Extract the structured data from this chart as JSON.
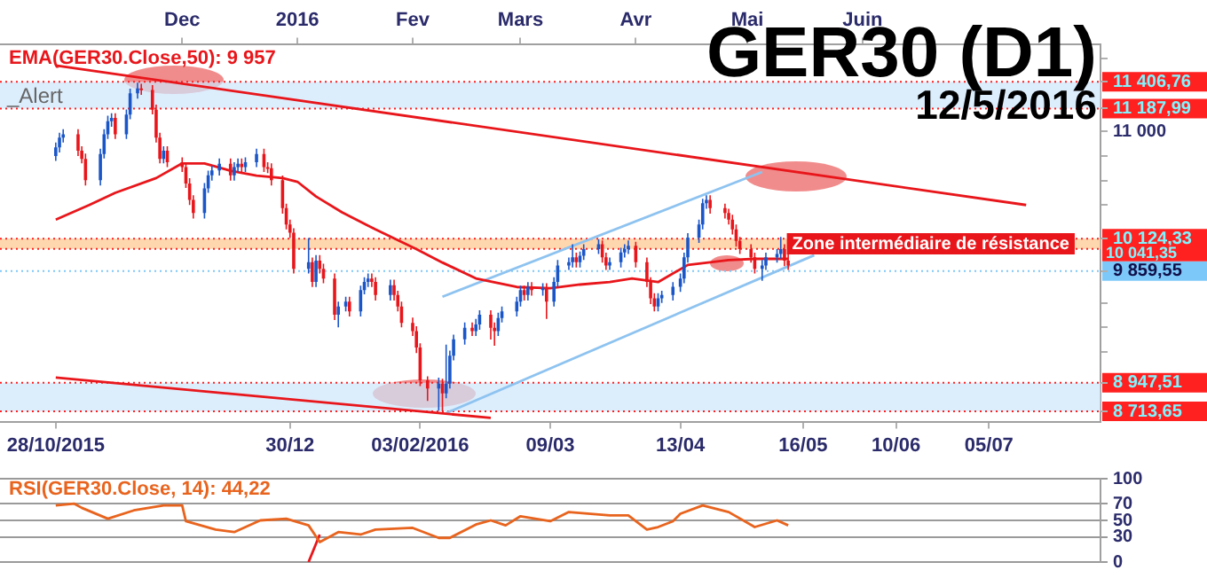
{
  "chart_data": [
    {
      "type": "candlestick",
      "title": "GER30 (D1)",
      "subtitle": "12/5/2016",
      "xlim": [
        "2015-10-13",
        "2016-08-04"
      ],
      "xticks": [
        {
          "value": "2015-10-28",
          "label": "28/10/2015"
        },
        {
          "value": "2015-12-30",
          "label": "30/12"
        },
        {
          "value": "2016-02-03",
          "label": "03/02/2016"
        },
        {
          "value": "2016-03-09",
          "label": "09/03"
        },
        {
          "value": "2016-04-13",
          "label": "13/04"
        },
        {
          "value": "2016-05-16",
          "label": "16/05"
        },
        {
          "value": "2016-06-10",
          "label": "10/06"
        },
        {
          "value": "2016-07-05",
          "label": "05/07"
        }
      ],
      "x2lim": [
        "2015-10-13",
        "2016-08-04"
      ],
      "x2ticks": [
        {
          "value": "2015-12-01",
          "label": "Dec"
        },
        {
          "value": "2016-01-01",
          "label": "2016"
        },
        {
          "value": "2016-02-01",
          "label": "Fev"
        },
        {
          "value": "2016-03-01",
          "label": "Mars"
        },
        {
          "value": "2016-04-01",
          "label": "Avr"
        },
        {
          "value": "2016-05-01",
          "label": "Mai"
        },
        {
          "value": "2016-06-01",
          "label": "Juin"
        }
      ],
      "ylim": [
        8630,
        11710
      ],
      "yticks": [
        {
          "value": 8713.65,
          "label": "8 713,65"
        },
        {
          "value": 8947.51,
          "label": "8 947,51"
        },
        {
          "value": 9200,
          "label": null
        },
        {
          "value": 9400,
          "label": null
        },
        {
          "value": 9600,
          "label": null
        },
        {
          "value": 9859.55,
          "label": "9 859,55"
        },
        {
          "value": 10124.33,
          "label": "10 124,33"
        },
        {
          "value": 10400,
          "label": null
        },
        {
          "value": 10600,
          "label": null
        },
        {
          "value": 10800,
          "label": null
        },
        {
          "value": 11000,
          "label": "11 000"
        },
        {
          "value": 11187.99,
          "label": "11 187,99"
        },
        {
          "value": 11406.76,
          "label": "11 406,76"
        },
        {
          "value": 11600,
          "label": null
        }
      ],
      "x": [
        "2015-10-28",
        "2015-10-29",
        "2015-10-30",
        "2015-11-03",
        "2015-11-04",
        "2015-11-05",
        "2015-11-09",
        "2015-11-10",
        "2015-11-11",
        "2015-11-12",
        "2015-11-13",
        "2015-11-16",
        "2015-11-17",
        "2015-11-19",
        "2015-11-20",
        "2015-11-23",
        "2015-11-24",
        "2015-11-25",
        "2015-11-26",
        "2015-11-27",
        "2015-12-01",
        "2015-12-02",
        "2015-12-03",
        "2015-12-04",
        "2015-12-07",
        "2015-12-08",
        "2015-12-09",
        "2015-12-11",
        "2015-12-14",
        "2015-12-15",
        "2015-12-16",
        "2015-12-17",
        "2015-12-18",
        "2015-12-21",
        "2015-12-23",
        "2015-12-24",
        "2015-12-25",
        "2015-12-28",
        "2015-12-29",
        "2015-12-30",
        "2015-12-31",
        "2016-01-04",
        "2016-01-05",
        "2016-01-06",
        "2016-01-07",
        "2016-01-08",
        "2016-01-11",
        "2016-01-12",
        "2016-01-14",
        "2016-01-15",
        "2016-01-18",
        "2016-01-19",
        "2016-01-20",
        "2016-01-21",
        "2016-01-22",
        "2016-01-26",
        "2016-01-27",
        "2016-01-28",
        "2016-01-29",
        "2016-02-01",
        "2016-02-02",
        "2016-02-03",
        "2016-02-05",
        "2016-02-08",
        "2016-02-09",
        "2016-02-10",
        "2016-02-11",
        "2016-02-12",
        "2016-02-15",
        "2016-02-17",
        "2016-02-18",
        "2016-02-19",
        "2016-02-22",
        "2016-02-23",
        "2016-02-24",
        "2016-02-25",
        "2016-02-29",
        "2016-03-01",
        "2016-03-02",
        "2016-03-03",
        "2016-03-04",
        "2016-03-07",
        "2016-03-08",
        "2016-03-10",
        "2016-03-11",
        "2016-03-14",
        "2016-03-15",
        "2016-03-16",
        "2016-03-17",
        "2016-03-18",
        "2016-03-22",
        "2016-03-23",
        "2016-03-24",
        "2016-03-25",
        "2016-03-28",
        "2016-03-29",
        "2016-03-30",
        "2016-04-01",
        "2016-04-04",
        "2016-04-05",
        "2016-04-06",
        "2016-04-07",
        "2016-04-08",
        "2016-04-11",
        "2016-04-13",
        "2016-04-14",
        "2016-04-15",
        "2016-04-18",
        "2016-04-19",
        "2016-04-20",
        "2016-04-21",
        "2016-04-25",
        "2016-04-26",
        "2016-04-27",
        "2016-04-28",
        "2016-04-29",
        "2016-05-02",
        "2016-05-03",
        "2016-05-05",
        "2016-05-06",
        "2016-05-09",
        "2016-05-10",
        "2016-05-11",
        "2016-05-12"
      ],
      "ohlc": [
        [
          10800,
          10910,
          10760,
          10871
        ],
        [
          10871,
          10990,
          10830,
          10951
        ],
        [
          10951,
          11020,
          10910,
          10978
        ],
        [
          10978,
          11020,
          10800,
          10844
        ],
        [
          10844,
          10880,
          10740,
          10777
        ],
        [
          10777,
          10820,
          10560,
          10603
        ],
        [
          10603,
          10860,
          10560,
          10817
        ],
        [
          10817,
          11020,
          10780,
          10978
        ],
        [
          10978,
          11130,
          10940,
          11085
        ],
        [
          11085,
          11150,
          11040,
          11112
        ],
        [
          11112,
          11150,
          10940,
          10978
        ],
        [
          10978,
          11180,
          10940,
          11139
        ],
        [
          11139,
          11350,
          11100,
          11313
        ],
        [
          11313,
          11400,
          11270,
          11353
        ],
        [
          11353,
          11390,
          11300,
          11340
        ],
        [
          11340,
          11380,
          11140,
          11179
        ],
        [
          11179,
          11220,
          10910,
          10951
        ],
        [
          10951,
          10990,
          10740,
          10777
        ],
        [
          10777,
          10880,
          10740,
          10844
        ],
        [
          10844,
          10880,
          10710,
          10750
        ],
        [
          10750,
          10790,
          10670,
          10710
        ],
        [
          10710,
          10750,
          10540,
          10576
        ],
        [
          10576,
          10620,
          10400,
          10442
        ],
        [
          10442,
          10480,
          10290,
          10335
        ],
        [
          10335,
          10580,
          10290,
          10536
        ],
        [
          10536,
          10680,
          10500,
          10643
        ],
        [
          10643,
          10720,
          10600,
          10683
        ],
        [
          10683,
          10780,
          10640,
          10737
        ],
        [
          10737,
          10780,
          10600,
          10643
        ],
        [
          10643,
          10750,
          10600,
          10710
        ],
        [
          10710,
          10780,
          10670,
          10737
        ],
        [
          10737,
          10780,
          10670,
          10710
        ],
        [
          10710,
          10790,
          10670,
          10750
        ],
        [
          10750,
          10860,
          10710,
          10817
        ],
        [
          10817,
          10860,
          10670,
          10710
        ],
        [
          10710,
          10750,
          10660,
          10700
        ],
        [
          10700,
          10740,
          10560,
          10603
        ],
        [
          10603,
          10640,
          10330,
          10375
        ],
        [
          10375,
          10410,
          10200,
          10241
        ],
        [
          10241,
          10280,
          10130,
          10174
        ],
        [
          10174,
          10210,
          9840,
          9879
        ],
        [
          9879,
          10130,
          9840,
          9933
        ],
        [
          9933,
          9970,
          9730,
          9772
        ],
        [
          9772,
          9990,
          9730,
          9946
        ],
        [
          9946,
          9990,
          9840,
          9879
        ],
        [
          9879,
          9920,
          9760,
          9799
        ],
        [
          9799,
          9840,
          9460,
          9504
        ],
        [
          9504,
          9610,
          9400,
          9571
        ],
        [
          9571,
          9650,
          9530,
          9611
        ],
        [
          9611,
          9650,
          9490,
          9531
        ],
        [
          9531,
          9740,
          9490,
          9705
        ],
        [
          9705,
          9810,
          9670,
          9772
        ],
        [
          9772,
          9840,
          9730,
          9799
        ],
        [
          9799,
          9840,
          9730,
          9772
        ],
        [
          9772,
          9810,
          9620,
          9665
        ],
        [
          9665,
          9790,
          9620,
          9745
        ],
        [
          9745,
          9790,
          9620,
          9665
        ],
        [
          9665,
          9700,
          9530,
          9571
        ],
        [
          9571,
          9610,
          9400,
          9437
        ],
        [
          9437,
          9480,
          9330,
          9370
        ],
        [
          9370,
          9410,
          9190,
          9236
        ],
        [
          9236,
          9270,
          8920,
          8968
        ],
        [
          8968,
          9000,
          8800,
          8901
        ],
        [
          8901,
          8990,
          8720,
          8941
        ],
        [
          8941,
          8980,
          8714,
          8861
        ],
        [
          8861,
          9260,
          8820,
          8941
        ],
        [
          8941,
          9210,
          8900,
          9169
        ],
        [
          9169,
          9340,
          9130,
          9303
        ],
        [
          9303,
          9440,
          9260,
          9397
        ],
        [
          9397,
          9440,
          9330,
          9370
        ],
        [
          9370,
          9470,
          9330,
          9424
        ],
        [
          9424,
          9540,
          9380,
          9504
        ],
        [
          9504,
          9540,
          9300,
          9397
        ],
        [
          9397,
          9440,
          9250,
          9370
        ],
        [
          9370,
          9520,
          9330,
          9477
        ],
        [
          9477,
          9570,
          9440,
          9531
        ],
        [
          9531,
          9650,
          9490,
          9611
        ],
        [
          9611,
          9740,
          9570,
          9705
        ],
        [
          9705,
          9740,
          9620,
          9665
        ],
        [
          9665,
          9770,
          9620,
          9732
        ],
        [
          9732,
          9770,
          9660,
          9705
        ],
        [
          9705,
          9760,
          9660,
          9720
        ],
        [
          9720,
          9760,
          9470,
          9611
        ],
        [
          9611,
          9810,
          9570,
          9772
        ],
        [
          9772,
          9950,
          9730,
          9906
        ],
        [
          9906,
          9970,
          9870,
          9933
        ],
        [
          9933,
          10080,
          9890,
          9973
        ],
        [
          9973,
          10010,
          9890,
          9933
        ],
        [
          9933,
          10020,
          9890,
          9986
        ],
        [
          9986,
          10080,
          9950,
          10040
        ],
        [
          10040,
          10120,
          10000,
          10080
        ],
        [
          10080,
          10110,
          9930,
          9973
        ],
        [
          9973,
          10010,
          9870,
          9906
        ],
        [
          9906,
          9970,
          9870,
          9933
        ],
        [
          9933,
          10050,
          9890,
          10013
        ],
        [
          10013,
          10080,
          9970,
          10040
        ],
        [
          10040,
          10110,
          10000,
          10067
        ],
        [
          10067,
          10100,
          9890,
          9933
        ],
        [
          9933,
          9970,
          9730,
          9772
        ],
        [
          9772,
          9810,
          9590,
          9638
        ],
        [
          9638,
          9680,
          9530,
          9571
        ],
        [
          9571,
          9680,
          9530,
          9638
        ],
        [
          9638,
          9700,
          9600,
          9665
        ],
        [
          9665,
          9770,
          9620,
          9732
        ],
        [
          9732,
          9840,
          9690,
          9799
        ],
        [
          9799,
          10010,
          9760,
          9973
        ],
        [
          9973,
          10170,
          9930,
          10134
        ],
        [
          10134,
          10280,
          10090,
          10241
        ],
        [
          10241,
          10450,
          10200,
          10415
        ],
        [
          10415,
          10480,
          10370,
          10442
        ],
        [
          10442,
          10480,
          10330,
          10375
        ],
        [
          10375,
          10410,
          10290,
          10335
        ],
        [
          10335,
          10370,
          10240,
          10281
        ],
        [
          10281,
          10320,
          10160,
          10201
        ],
        [
          10201,
          10240,
          10060,
          10107
        ],
        [
          10107,
          10140,
          10000,
          10040
        ],
        [
          10040,
          10080,
          9930,
          9973
        ],
        [
          9973,
          10010,
          9840,
          9879
        ],
        [
          9879,
          9950,
          9780,
          9906
        ],
        [
          9906,
          10010,
          9870,
          9973
        ],
        [
          9973,
          10040,
          9930,
          10000
        ],
        [
          10000,
          10140,
          9960,
          10040
        ],
        [
          10040,
          10080,
          9900,
          9946
        ],
        [
          9946,
          10000,
          9870,
          9906
        ]
      ],
      "colors": [
        "#1a56c8",
        "#1a56c8",
        "#1a56c8",
        "#e8161b",
        "#e8161b",
        "#e8161b",
        "#1a56c8",
        "#1a56c8",
        "#1a56c8",
        "#1a56c8",
        "#e8161b",
        "#1a56c8",
        "#1a56c8",
        "#1a56c8",
        "#e8161b",
        "#e8161b",
        "#e8161b",
        "#e8161b",
        "#1a56c8",
        "#e8161b",
        "#e8161b",
        "#e8161b",
        "#e8161b",
        "#e8161b",
        "#1a56c8",
        "#1a56c8",
        "#1a56c8",
        "#1a56c8",
        "#e8161b",
        "#1a56c8",
        "#1a56c8",
        "#e8161b",
        "#1a56c8",
        "#1a56c8",
        "#e8161b",
        "#e8161b",
        "#e8161b",
        "#e8161b",
        "#e8161b",
        "#e8161b",
        "#e8161b",
        "#1a56c8",
        "#e8161b",
        "#1a56c8",
        "#e8161b",
        "#e8161b",
        "#e8161b",
        "#1a56c8",
        "#1a56c8",
        "#e8161b",
        "#1a56c8",
        "#1a56c8",
        "#1a56c8",
        "#e8161b",
        "#e8161b",
        "#1a56c8",
        "#e8161b",
        "#e8161b",
        "#e8161b",
        "#e8161b",
        "#e8161b",
        "#e8161b",
        "#e8161b",
        "#1a56c8",
        "#e8161b",
        "#1a56c8",
        "#1a56c8",
        "#1a56c8",
        "#1a56c8",
        "#e8161b",
        "#1a56c8",
        "#1a56c8",
        "#e8161b",
        "#e8161b",
        "#1a56c8",
        "#1a56c8",
        "#1a56c8",
        "#1a56c8",
        "#e8161b",
        "#1a56c8",
        "#e8161b",
        "#1a56c8",
        "#e8161b",
        "#1a56c8",
        "#1a56c8",
        "#1a56c8",
        "#1a56c8",
        "#e8161b",
        "#1a56c8",
        "#1a56c8",
        "#1a56c8",
        "#e8161b",
        "#e8161b",
        "#1a56c8",
        "#1a56c8",
        "#1a56c8",
        "#1a56c8",
        "#e8161b",
        "#e8161b",
        "#e8161b",
        "#e8161b",
        "#1a56c8",
        "#1a56c8",
        "#1a56c8",
        "#1a56c8",
        "#1a56c8",
        "#1a56c8",
        "#1a56c8",
        "#1a56c8",
        "#1a56c8",
        "#e8161b",
        "#e8161b",
        "#e8161b",
        "#e8161b",
        "#e8161b",
        "#e8161b",
        "#e8161b",
        "#e8161b",
        "#1a56c8",
        "#1a56c8",
        "#1a56c8",
        "#1a56c8",
        "#e8161b",
        "#e8161b"
      ],
      "series": [
        {
          "type": "line",
          "name": "EMA(GER30.Close,50): 9 957",
          "color": "#e8161b",
          "x": [
            "2015-10-28",
            "2015-11-06",
            "2015-11-13",
            "2015-11-24",
            "2015-12-01",
            "2015-12-07",
            "2015-12-14",
            "2015-12-21",
            "2015-12-28",
            "2016-01-01",
            "2016-01-06",
            "2016-01-13",
            "2016-01-22",
            "2016-02-02",
            "2016-02-09",
            "2016-02-18",
            "2016-02-29",
            "2016-03-09",
            "2016-03-17",
            "2016-03-25",
            "2016-03-31",
            "2016-04-07",
            "2016-04-15",
            "2016-04-26",
            "2016-05-03",
            "2016-05-12"
          ],
          "values": [
            10280,
            10400,
            10500,
            10620,
            10740,
            10740,
            10680,
            10640,
            10620,
            10590,
            10470,
            10340,
            10200,
            10040,
            9930,
            9800,
            9730,
            9720,
            9750,
            9770,
            9800,
            9770,
            9910,
            9950,
            9960,
            9960
          ]
        },
        {
          "type": "line",
          "color": "#e8161b",
          "x": [
            "2015-10-28",
            "2016-07-15"
          ],
          "values": [
            11540,
            10400
          ]
        },
        {
          "type": "line",
          "color": "#e8161b",
          "x": [
            "2015-10-28",
            "2016-02-22"
          ],
          "values": [
            8990,
            8660
          ]
        },
        {
          "type": "line",
          "color": "#8ec3f0",
          "x": [
            "2016-02-09",
            "2016-05-05"
          ],
          "values": [
            9650,
            10670
          ]
        },
        {
          "type": "line",
          "color": "#8ec3f0",
          "x": [
            "2016-02-10",
            "2016-05-19"
          ],
          "values": [
            8700,
            9990
          ]
        }
      ],
      "bands": [
        {
          "axis": "y",
          "from": 11187.99,
          "to": 11406.76,
          "label": "_Alert",
          "color": "#cde6fb"
        },
        {
          "axis": "y",
          "from": 10041.35,
          "to": 10124.33,
          "label": "Zone intermédiaire de résistance",
          "color": "#ffc68c"
        },
        {
          "axis": "y",
          "from": 8713.65,
          "to": 8947.51,
          "color": "#cde6fb"
        }
      ],
      "ref_lines": [
        {
          "axis": "y",
          "value": 11406.76,
          "color": "#ff2020",
          "line_style": "dotted"
        },
        {
          "axis": "y",
          "value": 11187.99,
          "color": "#ff2020",
          "line_style": "dotted"
        },
        {
          "axis": "y",
          "value": 10124.33,
          "color": "#ff2020",
          "line_style": "dotted"
        },
        {
          "axis": "y",
          "value": 10041.35,
          "label": "10 041,35",
          "color": "#ff2020",
          "line_style": "dotted"
        },
        {
          "axis": "y",
          "value": 9859.55,
          "color": "#7cc8f8",
          "line_style": "dotted"
        },
        {
          "axis": "y",
          "value": 8947.51,
          "color": "#ff2020",
          "line_style": "dotted"
        },
        {
          "axis": "y",
          "value": 8713.65,
          "color": "#ff2020",
          "line_style": "dotted"
        }
      ]
    },
    {
      "type": "line",
      "xlim": [
        "2015-10-13",
        "2016-08-04"
      ],
      "ylim": [
        0,
        100
      ],
      "yticks": [
        0,
        30,
        50,
        70,
        100
      ],
      "grid": "y",
      "tick_labels": "y",
      "series": [
        {
          "name": "RSI(GER30.Close, 14): 44,22",
          "color": "#e8641e",
          "x": [
            "2015-10-28",
            "2015-11-02",
            "2015-11-04",
            "2015-11-11",
            "2015-11-18",
            "2015-11-26",
            "2015-12-01",
            "2015-12-02",
            "2015-12-10",
            "2015-12-15",
            "2015-12-22",
            "2015-12-29",
            "2016-01-04",
            "2016-01-07",
            "2016-01-12",
            "2016-01-18",
            "2016-01-22",
            "2016-02-01",
            "2016-02-08",
            "2016-02-11",
            "2016-02-18",
            "2016-02-22",
            "2016-02-26",
            "2016-03-01",
            "2016-03-09",
            "2016-03-14",
            "2016-03-25",
            "2016-03-30",
            "2016-04-04",
            "2016-04-07",
            "2016-04-11",
            "2016-04-13",
            "2016-04-19",
            "2016-04-26",
            "2016-05-03",
            "2016-05-09",
            "2016-05-12"
          ],
          "values": [
            68,
            70,
            65,
            52,
            62,
            68,
            68,
            49,
            39,
            36,
            50,
            52,
            44,
            24,
            36,
            33,
            39,
            41,
            29,
            29,
            45,
            50,
            44,
            55,
            49,
            60,
            56,
            56,
            39,
            42,
            49,
            58,
            68,
            60,
            42,
            50,
            44
          ]
        },
        {
          "type": "line",
          "color": "#e8161b",
          "x": [
            "2016-01-04",
            "2016-01-07"
          ],
          "values": [
            0,
            33
          ]
        }
      ]
    }
  ]
}
